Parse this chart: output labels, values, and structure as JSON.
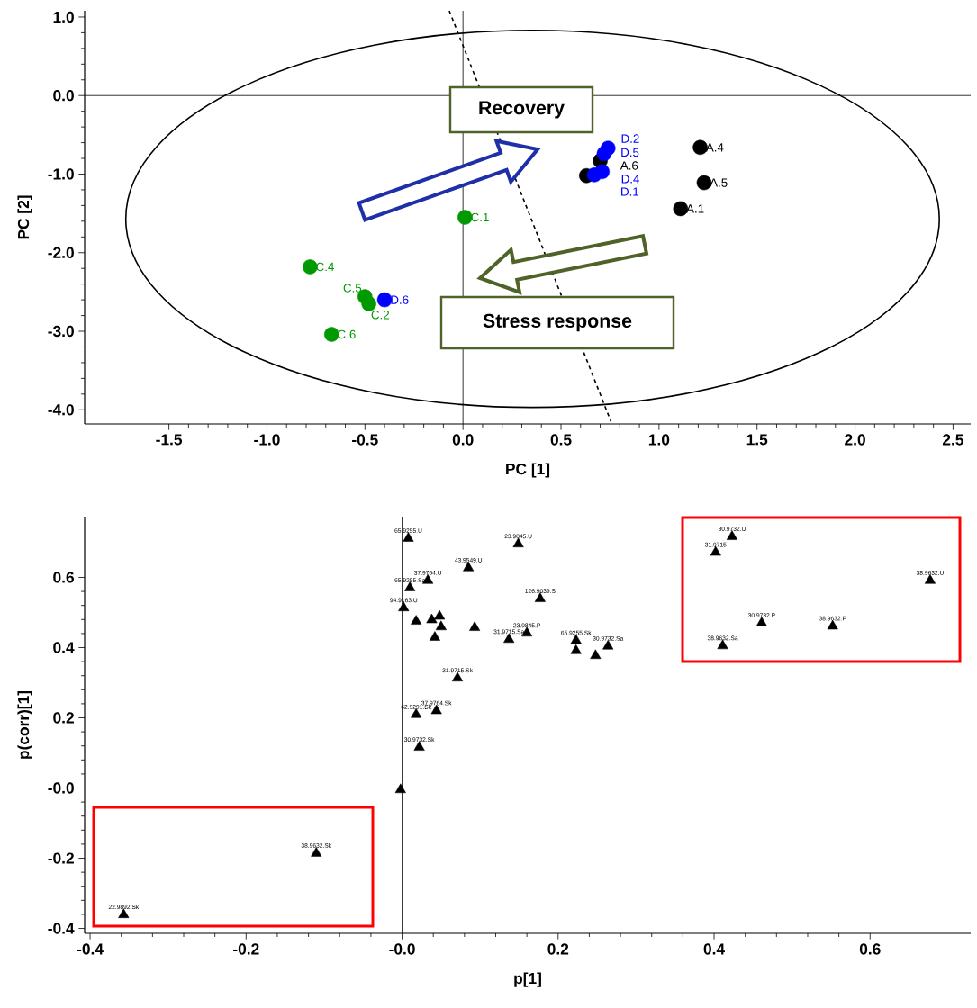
{
  "chart_data": [
    {
      "type": "scatter",
      "xlabel": "PC [1]",
      "ylabel": "PC [2]",
      "xlim": [
        -1.93,
        2.59
      ],
      "ylim": [
        -4.18,
        1.08
      ],
      "xticks": [
        {
          "value": -1.5,
          "label": "-1.5"
        },
        {
          "value": -1.0,
          "label": "-1.0"
        },
        {
          "value": -0.5,
          "label": "-0.5"
        },
        {
          "value": 0,
          "label": "0.0"
        },
        {
          "value": 0.5,
          "label": "0.5"
        },
        {
          "value": 1.0,
          "label": "1.0"
        },
        {
          "value": 1.5,
          "label": "1.5"
        },
        {
          "value": 2.0,
          "label": "2.0"
        },
        {
          "value": 2.5,
          "label": "2.5"
        }
      ],
      "yticks": [
        {
          "value": 1.0,
          "label": "1.0"
        },
        {
          "value": 0,
          "label": "0.0"
        },
        {
          "value": -1.0,
          "label": "-1.0"
        },
        {
          "value": -2.0,
          "label": "-2.0"
        },
        {
          "value": -3.0,
          "label": "-3.0"
        },
        {
          "value": -4.0,
          "label": "-4.0"
        }
      ],
      "series": [
        {
          "marker": "circle",
          "color": "#000000",
          "x": [
            1.21,
            1.23,
            1.11,
            0.7,
            0.63
          ],
          "values": [
            -0.66,
            -1.11,
            -1.44,
            -0.83,
            -1.02
          ]
        },
        {
          "marker": "circle",
          "color": "#009900",
          "x": [
            0.01,
            -0.78,
            -0.5,
            -0.48,
            -0.67
          ],
          "values": [
            -1.55,
            -2.18,
            -2.56,
            -2.65,
            -3.04
          ]
        },
        {
          "marker": "circle",
          "color": "#0000ff",
          "x": [
            0.74,
            0.72,
            0.71,
            0.67,
            -0.4
          ],
          "values": [
            -0.67,
            -0.74,
            -0.97,
            -1.01,
            -2.6
          ]
        },
        {
          "type": "line",
          "marker": "none",
          "line_style": "dashed",
          "color": "#000000",
          "x": [
            -0.07,
            0.755
          ],
          "values": [
            1.08,
            -4.15
          ]
        }
      ],
      "annotations": [
        "Recovery",
        "Stress response",
        {
          "text": "A.4",
          "x": 1.21,
          "y": -0.66
        },
        {
          "text": "A.5",
          "x": 1.23,
          "y": -1.11
        },
        {
          "text": "A.1",
          "x": 1.11,
          "y": -1.44
        },
        {
          "text": "A.6",
          "x": 0.7,
          "y": -0.83
        },
        {
          "text": "D.2",
          "x": 0.74,
          "y": -0.67
        },
        {
          "text": "D.5",
          "x": 0.72,
          "y": -0.74
        },
        {
          "text": "D.4",
          "x": 0.71,
          "y": -0.97
        },
        {
          "text": "D.1",
          "x": 0.67,
          "y": -1.01
        },
        {
          "text": "D.6",
          "x": -0.4,
          "y": -2.6
        },
        {
          "text": "C.1",
          "x": 0.01,
          "y": -1.55
        },
        {
          "text": "C.4",
          "x": -0.78,
          "y": -2.18
        },
        {
          "text": "C.5",
          "x": -0.5,
          "y": -2.56
        },
        {
          "text": "C.2",
          "x": -0.48,
          "y": -2.65
        },
        {
          "text": "C.6",
          "x": -0.67,
          "y": -3.04
        }
      ]
    },
    {
      "type": "scatter",
      "xlabel": "p[1]",
      "ylabel": "p(corr)[1]",
      "xlim": [
        -0.407,
        0.729
      ],
      "ylim": [
        -0.414,
        0.773
      ],
      "xticks": [
        {
          "value": -0.4,
          "label": "-0.4"
        },
        {
          "value": -0.2,
          "label": "-0.2"
        },
        {
          "value": 0,
          "label": "-0.0"
        },
        {
          "value": 0.2,
          "label": "0.2"
        },
        {
          "value": 0.4,
          "label": "0.4"
        },
        {
          "value": 0.6,
          "label": "0.6"
        }
      ],
      "yticks": [
        {
          "value": -0.4,
          "label": "-0.4"
        },
        {
          "value": -0.2,
          "label": "-0.2"
        },
        {
          "value": 0,
          "label": "-0.0"
        },
        {
          "value": 0.2,
          "label": "0.2"
        },
        {
          "value": 0.4,
          "label": "0.4"
        },
        {
          "value": 0.6,
          "label": "0.6"
        }
      ],
      "series": [
        {
          "marker": "triangle",
          "color": "#000000",
          "x": [
            0.008,
            0.149,
            0.085,
            0.033,
            0.01,
            0.002,
            0.177,
            0.018,
            0.038,
            0.048,
            0.05,
            0.042,
            0.093,
            0.137,
            0.16,
            0.223,
            0.223,
            0.248,
            0.264,
            0.071,
            0.044,
            0.018,
            0.022,
            -0.002,
            -0.11,
            -0.357,
            0.423,
            0.402,
            0.677,
            0.461,
            0.552,
            0.411
          ],
          "values": [
            0.711,
            0.695,
            0.627,
            0.591,
            0.57,
            0.513,
            0.539,
            0.475,
            0.479,
            0.489,
            0.459,
            0.429,
            0.457,
            0.423,
            0.441,
            0.42,
            0.391,
            0.377,
            0.404,
            0.313,
            0.22,
            0.209,
            0.116,
            -0.005,
            -0.186,
            -0.361,
            0.716,
            0.671,
            0.591,
            0.47,
            0.461,
            0.405
          ]
        }
      ],
      "annotations": [
        {
          "text": "65.9255.U",
          "x": 0.008,
          "y": 0.711
        },
        {
          "text": "23.9845.U",
          "x": 0.149,
          "y": 0.695
        },
        {
          "text": "43.9549.U",
          "x": 0.085,
          "y": 0.627
        },
        {
          "text": "37.9764.U",
          "x": 0.033,
          "y": 0.591
        },
        {
          "text": "65.9255.Sa",
          "x": 0.01,
          "y": 0.57
        },
        {
          "text": "94.9163.U",
          "x": 0.002,
          "y": 0.513
        },
        {
          "text": "126.9039.S",
          "x": 0.177,
          "y": 0.539
        },
        {
          "text": "31.9715.Sa",
          "x": 0.137,
          "y": 0.423
        },
        {
          "text": "23.9845.P",
          "x": 0.16,
          "y": 0.441
        },
        {
          "text": "65.9255.Sk",
          "x": 0.223,
          "y": 0.42
        },
        {
          "text": "30.9732.Sa",
          "x": 0.264,
          "y": 0.404
        },
        {
          "text": "31.9715.Sk",
          "x": 0.071,
          "y": 0.313
        },
        {
          "text": "37.9764.Sk",
          "x": 0.044,
          "y": 0.22
        },
        {
          "text": "62.9291.Sk",
          "x": 0.018,
          "y": 0.209
        },
        {
          "text": "30.9732.Sk",
          "x": 0.022,
          "y": 0.116
        },
        {
          "text": "38.9632.Sk",
          "x": -0.11,
          "y": -0.186
        },
        {
          "text": "22.9892.Sk",
          "x": -0.357,
          "y": -0.361
        },
        {
          "text": "30.9732.U",
          "x": 0.423,
          "y": 0.716
        },
        {
          "text": "31.9715",
          "x": 0.402,
          "y": 0.671
        },
        {
          "text": "38.9632.U",
          "x": 0.677,
          "y": 0.591
        },
        {
          "text": "30.9732.P",
          "x": 0.461,
          "y": 0.47
        },
        {
          "text": "38.9632.P",
          "x": 0.552,
          "y": 0.461
        },
        {
          "text": "38.9632.Sa",
          "x": 0.411,
          "y": 0.405
        }
      ]
    }
  ]
}
